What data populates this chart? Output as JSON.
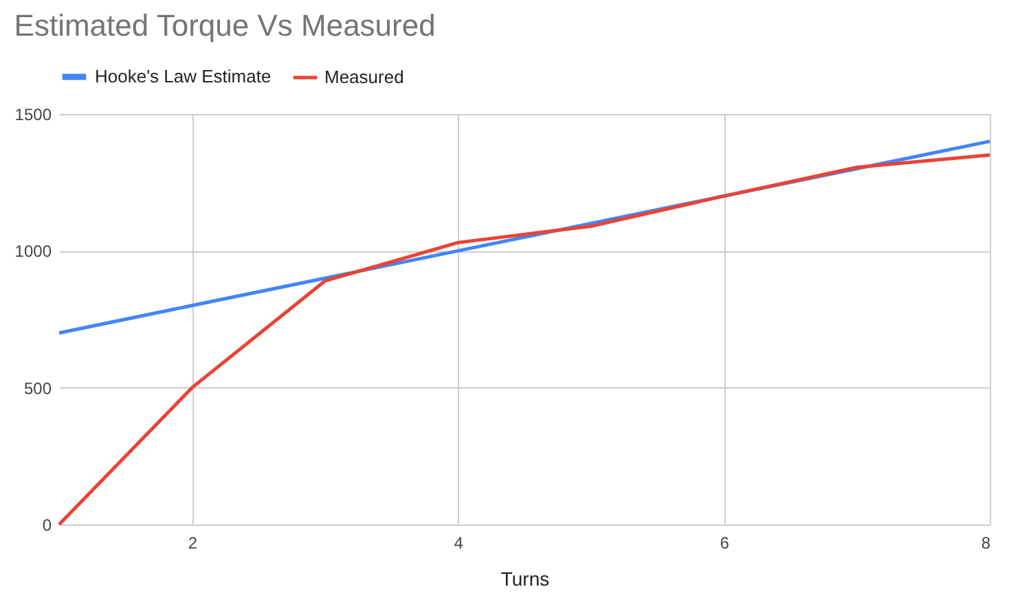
{
  "chart_data": {
    "type": "line",
    "title": "Estimated Torque Vs Measured",
    "xlabel": "Turns",
    "x": [
      1,
      2,
      3,
      4,
      5,
      6,
      7,
      8
    ],
    "series": [
      {
        "name": "Hooke's Law Estimate",
        "color": "#4285f4",
        "values": [
          700,
          800,
          900,
          1000,
          1100,
          1200,
          1300,
          1400
        ]
      },
      {
        "name": "Measured",
        "color": "#ea4335",
        "values": [
          0,
          500,
          890,
          1030,
          1090,
          1200,
          1305,
          1350
        ]
      }
    ],
    "xlim": [
      1,
      8
    ],
    "xticks": [
      2,
      4,
      6,
      8
    ],
    "ylim": [
      0,
      1500
    ],
    "yticks": [
      0,
      500,
      1000,
      1500
    ],
    "grid": true,
    "legend": "top",
    "marker": "none",
    "line_style": "solid"
  }
}
